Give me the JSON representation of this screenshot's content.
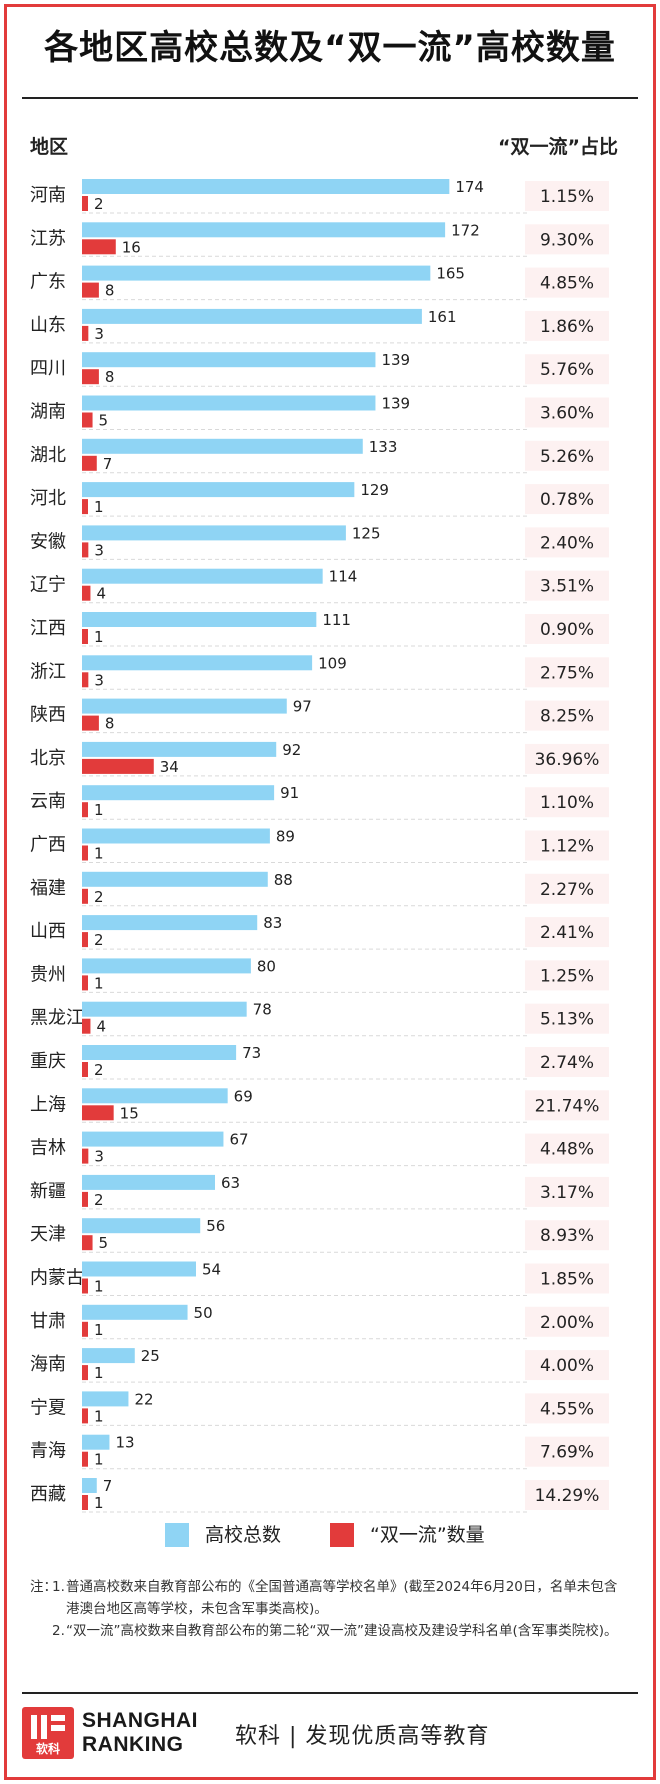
{
  "title": "各地区高校总数及“双一流”高校数量",
  "header": {
    "region_label": "地区",
    "ratio_label": "“双一流”占比"
  },
  "colors": {
    "total": "#8fd4f4",
    "double": "#e23b3b",
    "accent": "#e23b3b",
    "ratio_bg": "#fdf1f1"
  },
  "chart_data": {
    "type": "bar",
    "orientation": "horizontal",
    "categories": [
      "河南",
      "江苏",
      "广东",
      "山东",
      "四川",
      "湖南",
      "湖北",
      "河北",
      "安徽",
      "辽宁",
      "江西",
      "浙江",
      "陕西",
      "北京",
      "云南",
      "广西",
      "福建",
      "山西",
      "贵州",
      "黑龙江",
      "重庆",
      "上海",
      "吉林",
      "新疆",
      "天津",
      "内蒙古",
      "甘肃",
      "海南",
      "宁夏",
      "青海",
      "西藏"
    ],
    "series": [
      {
        "name": "高校总数",
        "values": [
          174,
          172,
          165,
          161,
          139,
          139,
          133,
          129,
          125,
          114,
          111,
          109,
          97,
          92,
          91,
          89,
          88,
          83,
          80,
          78,
          73,
          69,
          67,
          63,
          56,
          54,
          50,
          25,
          22,
          13,
          7
        ]
      },
      {
        "name": "“双一流”数量",
        "values": [
          2,
          16,
          8,
          3,
          8,
          5,
          7,
          1,
          3,
          4,
          1,
          3,
          8,
          34,
          1,
          1,
          2,
          2,
          1,
          4,
          2,
          15,
          3,
          2,
          5,
          1,
          1,
          1,
          1,
          1,
          1
        ]
      }
    ],
    "ratio": [
      "1.15%",
      "9.30%",
      "4.85%",
      "1.86%",
      "5.76%",
      "3.60%",
      "5.26%",
      "0.78%",
      "2.40%",
      "3.51%",
      "0.90%",
      "2.75%",
      "8.25%",
      "36.96%",
      "1.10%",
      "1.12%",
      "2.27%",
      "2.41%",
      "1.25%",
      "5.13%",
      "2.74%",
      "21.74%",
      "4.48%",
      "3.17%",
      "8.93%",
      "1.85%",
      "2.00%",
      "4.00%",
      "4.55%",
      "7.69%",
      "14.29%"
    ],
    "xlim": [
      0,
      180
    ],
    "grid": false,
    "legend": "bottom"
  },
  "notes": [
    {
      "prefix": "注：",
      "num": "1.",
      "text": "普通高校数来自教育部公布的《全国普通高等学校名单》(截至2024年6月20日，名单未包含港澳台地区高等学校，未包含军事类高校)。"
    },
    {
      "prefix": "",
      "num": "2.",
      "text": "“双一流”高校数来自教育部公布的第二轮“双一流”建设高校及建设学科名单(含军事类院校)。"
    }
  ],
  "footer": {
    "logo_cn": "软科",
    "brand_line1": "SHANGHAI",
    "brand_line2": "RANKING",
    "tagline": "软科 | 发现优质高等教育"
  }
}
